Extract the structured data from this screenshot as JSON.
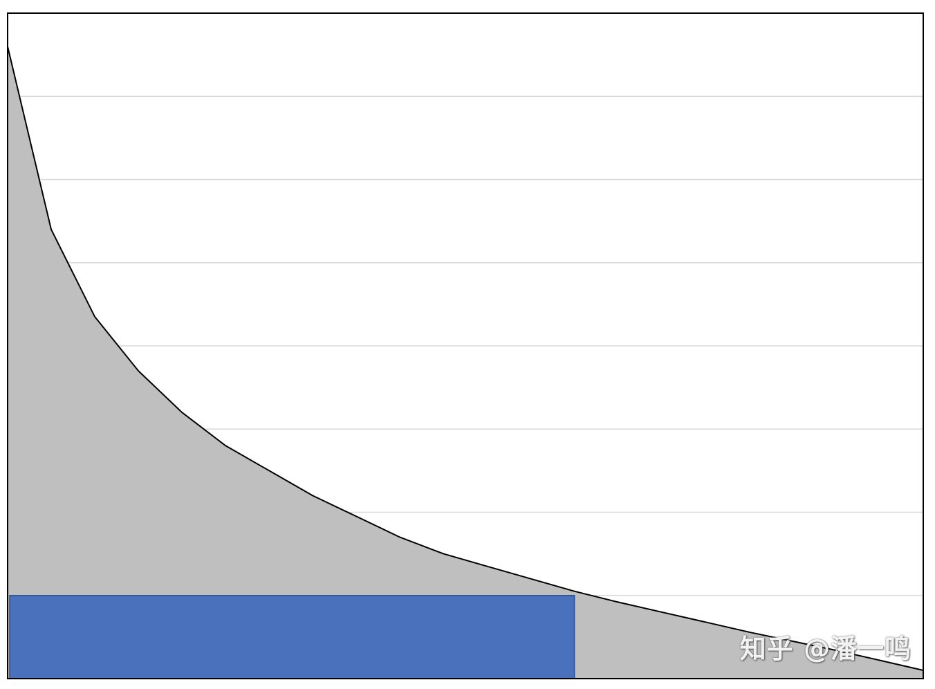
{
  "chart_data": {
    "type": "area",
    "title": "",
    "xlabel": "",
    "ylabel": "",
    "x": [
      0,
      1,
      2,
      3,
      4,
      5,
      6,
      7,
      8,
      9,
      10,
      11,
      12,
      13,
      14,
      15,
      16,
      17,
      18,
      19,
      20,
      21
    ],
    "series": [
      {
        "values": [
          7.6,
          5.4,
          4.35,
          3.7,
          3.2,
          2.8,
          2.5,
          2.2,
          1.95,
          1.7,
          1.5,
          1.35,
          1.2,
          1.05,
          0.92,
          0.8,
          0.68,
          0.56,
          0.45,
          0.34,
          0.22,
          0.1
        ],
        "fill_color": "#bfbfbf",
        "line_color": "#000000"
      }
    ],
    "highlight_rect": {
      "x_range": [
        0,
        13
      ],
      "height": 1.0,
      "fill_color": "#4a72bc",
      "edge_color": "#2f4f8f"
    },
    "xlim": [
      0,
      21
    ],
    "ylim": [
      0,
      8
    ],
    "y_gridlines": [
      1,
      2,
      3,
      4,
      5,
      6,
      7
    ],
    "grid": true,
    "legend": "none"
  },
  "watermark": "知乎 @潘一鸣"
}
